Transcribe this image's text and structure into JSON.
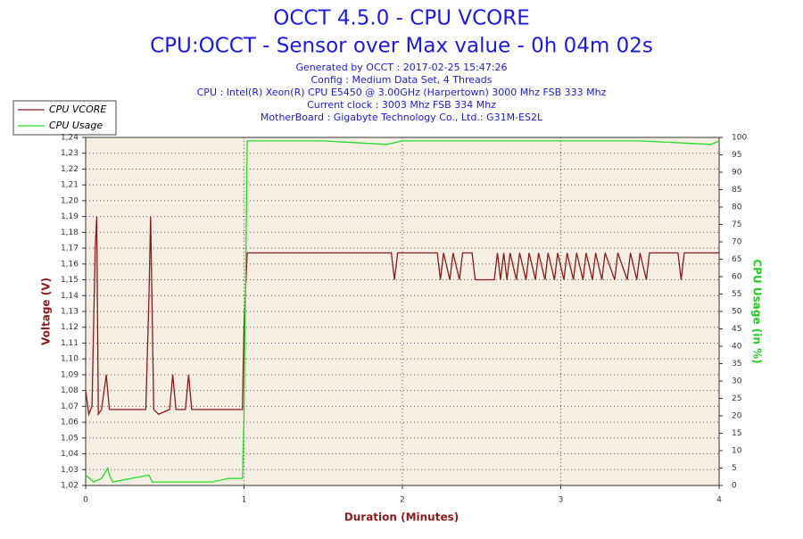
{
  "chart_data": {
    "type": "line",
    "title": "OCCT 4.5.0 - CPU VCORE",
    "subtitle": "CPU:OCCT - Sensor over Max value - 0h 04m 02s",
    "info": [
      "Generated by OCCT : 2017-02-25 15:47:26",
      "Config : Medium Data Set, 4 Threads",
      "CPU : Intel(R) Xeon(R) CPU E5450 @ 3.00GHz (Harpertown) 3000 Mhz FSB 333 Mhz",
      "Current clock : 3003 Mhz FSB 334 Mhz",
      "MotherBoard : Gigabyte Technology Co., Ltd.: G31M-ES2L"
    ],
    "xlabel": "Duration (Minutes)",
    "ylabel": "Voltage (V)",
    "y2label": "CPU Usage (in %)",
    "xlim": [
      0,
      4
    ],
    "xticks": [
      0,
      1,
      2,
      3,
      4
    ],
    "ylim": [
      1.02,
      1.24
    ],
    "yticks": [
      {
        "value": 1.02,
        "label": "1,02"
      },
      {
        "value": 1.03,
        "label": "1,03"
      },
      {
        "value": 1.04,
        "label": "1,04"
      },
      {
        "value": 1.05,
        "label": "1,05"
      },
      {
        "value": 1.06,
        "label": "1,06"
      },
      {
        "value": 1.07,
        "label": "1,07"
      },
      {
        "value": 1.08,
        "label": "1,08"
      },
      {
        "value": 1.09,
        "label": "1,09"
      },
      {
        "value": 1.1,
        "label": "1,10"
      },
      {
        "value": 1.11,
        "label": "1,11"
      },
      {
        "value": 1.12,
        "label": "1,12"
      },
      {
        "value": 1.13,
        "label": "1,13"
      },
      {
        "value": 1.14,
        "label": "1,14"
      },
      {
        "value": 1.15,
        "label": "1,15"
      },
      {
        "value": 1.16,
        "label": "1,16"
      },
      {
        "value": 1.17,
        "label": "1,17"
      },
      {
        "value": 1.18,
        "label": "1,18"
      },
      {
        "value": 1.19,
        "label": "1,19"
      },
      {
        "value": 1.2,
        "label": "1,20"
      },
      {
        "value": 1.21,
        "label": "1,21"
      },
      {
        "value": 1.22,
        "label": "1,22"
      },
      {
        "value": 1.23,
        "label": "1,23"
      },
      {
        "value": 1.24,
        "label": "1,24"
      }
    ],
    "y2lim": [
      0,
      100
    ],
    "y2ticks": [
      0,
      5,
      10,
      15,
      20,
      25,
      30,
      35,
      40,
      45,
      50,
      55,
      60,
      65,
      70,
      75,
      80,
      85,
      90,
      95,
      100
    ],
    "grid": true,
    "legend": "top-left",
    "series": [
      {
        "name": "CPU VCORE",
        "color": "#8b1a1a",
        "x": [
          0,
          0.02,
          0.04,
          0.06,
          0.07,
          0.08,
          0.1,
          0.13,
          0.15,
          0.38,
          0.4,
          0.41,
          0.43,
          0.46,
          0.53,
          0.55,
          0.57,
          0.63,
          0.65,
          0.67,
          0.99,
          1.0,
          1.01,
          1.02,
          1.93,
          1.95,
          1.97,
          2.22,
          2.24,
          2.26,
          2.3,
          2.32,
          2.36,
          2.38,
          2.44,
          2.46,
          2.58,
          2.6,
          2.62,
          2.64,
          2.66,
          2.68,
          2.72,
          2.74,
          2.78,
          2.8,
          2.84,
          2.86,
          2.9,
          2.92,
          2.96,
          2.98,
          3.02,
          3.04,
          3.08,
          3.1,
          3.14,
          3.16,
          3.2,
          3.22,
          3.26,
          3.28,
          3.34,
          3.36,
          3.42,
          3.44,
          3.48,
          3.5,
          3.54,
          3.56,
          3.74,
          3.76,
          3.78,
          4.0
        ],
        "values": [
          1.08,
          1.065,
          1.07,
          1.17,
          1.19,
          1.065,
          1.068,
          1.09,
          1.068,
          1.068,
          1.14,
          1.19,
          1.068,
          1.065,
          1.068,
          1.09,
          1.068,
          1.068,
          1.09,
          1.068,
          1.068,
          1.12,
          1.145,
          1.167,
          1.167,
          1.15,
          1.167,
          1.167,
          1.15,
          1.167,
          1.15,
          1.167,
          1.15,
          1.167,
          1.167,
          1.15,
          1.15,
          1.167,
          1.15,
          1.167,
          1.15,
          1.167,
          1.15,
          1.167,
          1.15,
          1.167,
          1.15,
          1.167,
          1.15,
          1.167,
          1.15,
          1.167,
          1.15,
          1.167,
          1.15,
          1.167,
          1.15,
          1.167,
          1.15,
          1.167,
          1.15,
          1.167,
          1.15,
          1.167,
          1.15,
          1.167,
          1.15,
          1.167,
          1.15,
          1.167,
          1.167,
          1.15,
          1.167,
          1.167
        ]
      },
      {
        "name": "CPU Usage",
        "color": "#22dd22",
        "axis": "y2",
        "x": [
          0,
          0.05,
          0.1,
          0.14,
          0.15,
          0.17,
          0.4,
          0.42,
          0.45,
          0.8,
          0.9,
          0.99,
          1.0,
          1.02,
          1.5,
          1.9,
          2.0,
          2.5,
          3.0,
          3.5,
          3.95,
          4.0
        ],
        "values": [
          3,
          1,
          2,
          5,
          3,
          1,
          3,
          1,
          1,
          1,
          2,
          2,
          20,
          99,
          99,
          98,
          99,
          99,
          99,
          99,
          98,
          99
        ]
      }
    ]
  }
}
